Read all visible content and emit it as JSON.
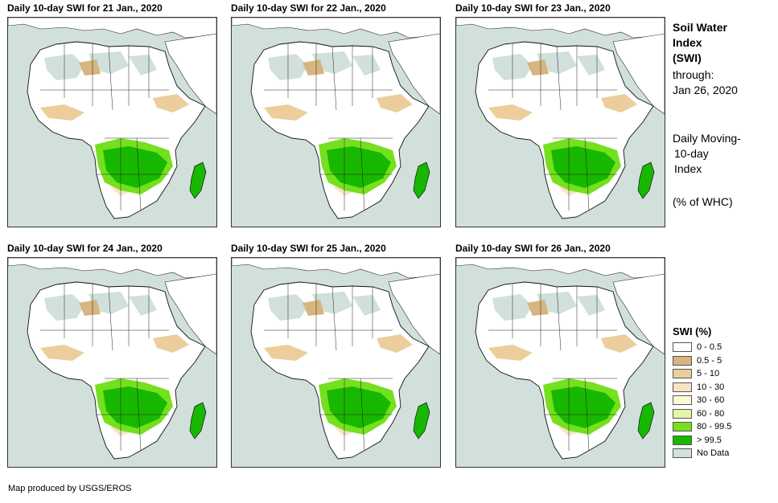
{
  "panels": [
    {
      "title": "Daily 10-day  SWI for 21 Jan., 2020"
    },
    {
      "title": "Daily 10-day  SWI for 22 Jan., 2020"
    },
    {
      "title": "Daily 10-day  SWI for 23 Jan., 2020"
    },
    {
      "title": "Daily 10-day  SWI for 24 Jan., 2020"
    },
    {
      "title": "Daily 10-day  SWI for 25 Jan., 2020"
    },
    {
      "title": "Daily 10-day  SWI for 26 Jan., 2020"
    }
  ],
  "sidebar": {
    "title_line1": "Soil Water",
    "title_line2": "Index",
    "title_line3": "(SWI)",
    "through_label": "through:",
    "through_date": "Jan 26, 2020",
    "desc_line1": "Daily Moving-",
    "desc_line2": "10-day",
    "desc_line3": "Index",
    "unit_label": "(% of WHC)"
  },
  "legend": {
    "title": "SWI (%)",
    "items": [
      {
        "label": "0 - 0.5",
        "color": "#ffffff"
      },
      {
        "label": "0.5 - 5",
        "color": "#d6b57e"
      },
      {
        "label": "5 - 10",
        "color": "#eccd9c"
      },
      {
        "label": "10 - 30",
        "color": "#f7e4c4"
      },
      {
        "label": "30 - 60",
        "color": "#fbfbd9"
      },
      {
        "label": "60 - 80",
        "color": "#e2f7a4"
      },
      {
        "label": "80 - 99.5",
        "color": "#74e01e"
      },
      {
        "label": "> 99.5",
        "color": "#17b800"
      },
      {
        "label": "No Data",
        "color": "#d2e0dc"
      }
    ]
  },
  "credit": "Map produced by USGS/EROS"
}
